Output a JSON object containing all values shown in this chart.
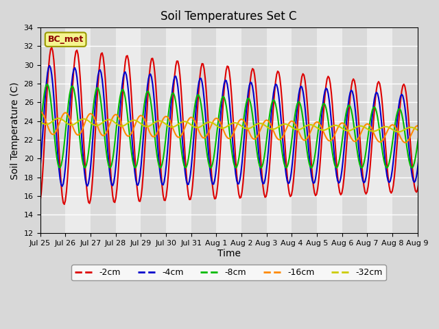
{
  "title": "Soil Temperatures Set C",
  "xlabel": "Time",
  "ylabel": "Soil Temperature (C)",
  "ylim": [
    12,
    34
  ],
  "annotation": "BC_met",
  "x_tick_labels": [
    "Jul 25",
    "Jul 26",
    "Jul 27",
    "Jul 28",
    "Jul 29",
    "Jul 30",
    "Jul 31",
    "Aug 1",
    "Aug 2",
    "Aug 3",
    "Aug 4",
    "Aug 5",
    "Aug 6",
    "Aug 7",
    "Aug 8",
    "Aug 9"
  ],
  "colors": {
    "-2cm": "#dd0000",
    "-4cm": "#0000cc",
    "-8cm": "#00bb00",
    "-16cm": "#ff8800",
    "-32cm": "#cccc00"
  },
  "legend_labels": [
    "-2cm",
    "-4cm",
    "-8cm",
    "-16cm",
    "-32cm"
  ],
  "bg_color": "#d8d8d8",
  "plot_bg_color": "#ebebeb"
}
